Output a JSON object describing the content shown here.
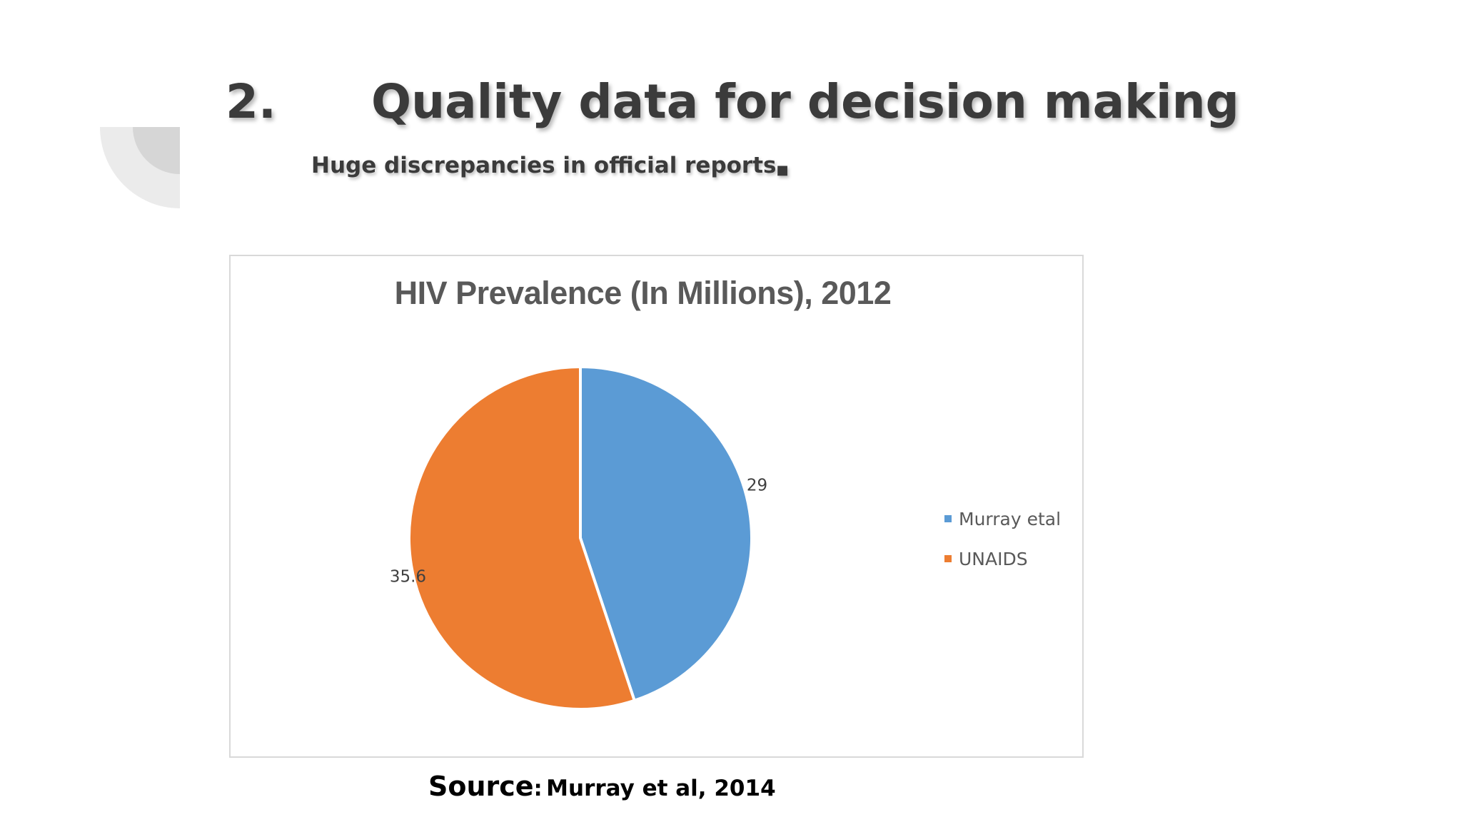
{
  "slide": {
    "number": "2.",
    "title": "Quality data for decision making",
    "subtitle": "Huge discrepancies in official reports",
    "subtitle_bullet": "■",
    "source_label": "Source",
    "source_colon": ":",
    "source_text": "Murray et al, 2014"
  },
  "chart_data": {
    "type": "pie",
    "title": "HIV Prevalence (In Millions), 2012",
    "categories": [
      "Murray etal",
      "UNAIDS"
    ],
    "values": [
      29,
      35.6
    ],
    "data_labels": [
      "29",
      "35.6"
    ],
    "colors": [
      "#5b9bd5",
      "#ed7d31"
    ],
    "legend_position": "right",
    "start_angle_degrees": 0,
    "direction": "clockwise"
  },
  "colors": {
    "heading_text": "#3b3b3b",
    "chart_title": "#595959",
    "decoration_outer": "#ebebeb",
    "decoration_inner": "#d6d6d6"
  }
}
